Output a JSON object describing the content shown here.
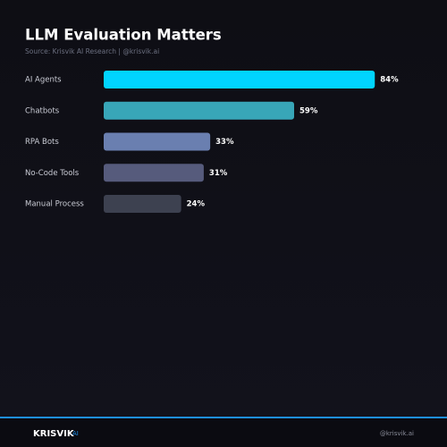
{
  "chart_data": {
    "type": "hbar",
    "title": "LLM Evaluation Matters",
    "subtitle": "Source: Krisvik AI Research | @krisvik.ai",
    "categories": [
      "AI Agents",
      "Chatbots",
      "RPA Bots",
      "No-Code Tools",
      "Manual Process"
    ],
    "values": [
      84,
      59,
      33,
      31,
      24
    ],
    "value_labels": [
      "84%",
      "59%",
      "33%",
      "31%",
      "24%"
    ],
    "colors": [
      "#00d4ff",
      "#38a6b8",
      "#6a7fb0",
      "#565b7c",
      "#3d4150"
    ],
    "xlim": [
      0,
      100
    ]
  },
  "footer": {
    "brand": "KRISVIK",
    "tag": "AI",
    "handle": "@krisvik.ai"
  }
}
